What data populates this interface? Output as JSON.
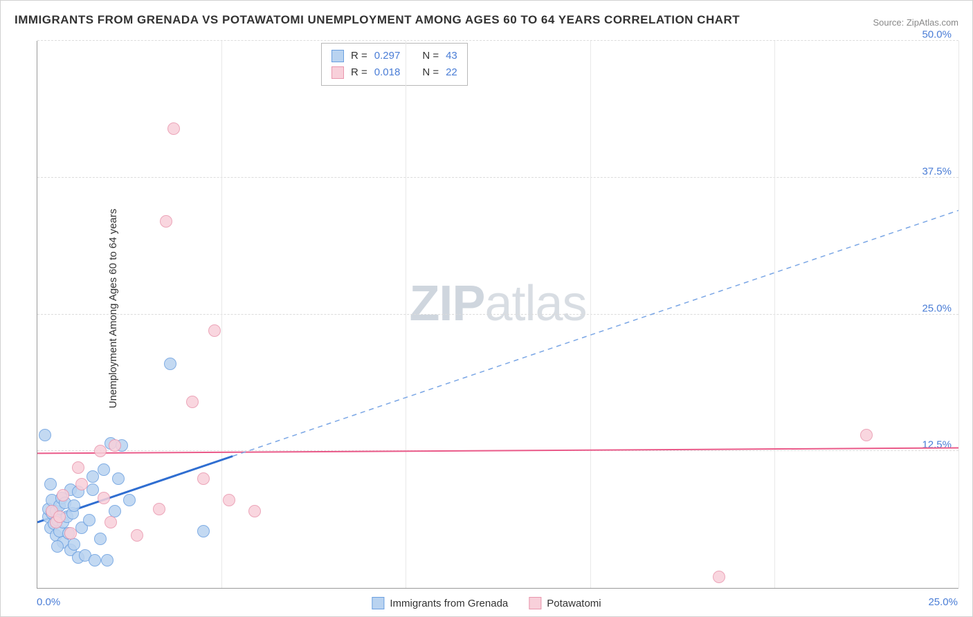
{
  "title": "IMMIGRANTS FROM GRENADA VS POTAWATOMI UNEMPLOYMENT AMONG AGES 60 TO 64 YEARS CORRELATION CHART",
  "source": "Source: ZipAtlas.com",
  "ylabel": "Unemployment Among Ages 60 to 64 years",
  "watermark_a": "ZIP",
  "watermark_b": "atlas",
  "chart": {
    "type": "scatter",
    "xlim": [
      0,
      25
    ],
    "ylim": [
      0,
      50
    ],
    "x_ticks": [
      0,
      5,
      10,
      15,
      20,
      25
    ],
    "y_ticks": [
      12.5,
      25.0,
      37.5,
      50.0
    ],
    "x_tick_labels": {
      "start": "0.0%",
      "end": "25.0%"
    },
    "y_tick_labels": [
      "12.5%",
      "25.0%",
      "37.5%",
      "50.0%"
    ],
    "background_color": "#ffffff",
    "grid_color": "#dcdcdc"
  },
  "series": {
    "grenada": {
      "label": "Immigrants from Grenada",
      "fill": "#b9d3f0",
      "stroke": "#6a9fe0",
      "marker_radius": 9,
      "R": "0.297",
      "N": "43",
      "trend": {
        "x1": 0,
        "y1": 6.0,
        "x2": 25,
        "y2": 34.5,
        "solid_until_x": 5.3,
        "color_solid": "#2f6ed1",
        "color_dash": "#7aa6e5",
        "width": 2
      },
      "points": [
        {
          "x": 0.2,
          "y": 14.0
        },
        {
          "x": 0.3,
          "y": 6.5
        },
        {
          "x": 0.3,
          "y": 7.2
        },
        {
          "x": 0.35,
          "y": 5.5
        },
        {
          "x": 0.4,
          "y": 6.8
        },
        {
          "x": 0.4,
          "y": 8.0
        },
        {
          "x": 0.45,
          "y": 5.9
        },
        {
          "x": 0.5,
          "y": 7.0
        },
        {
          "x": 0.5,
          "y": 4.8
        },
        {
          "x": 0.55,
          "y": 6.2
        },
        {
          "x": 0.6,
          "y": 7.5
        },
        {
          "x": 0.6,
          "y": 5.2
        },
        {
          "x": 0.65,
          "y": 8.2
        },
        {
          "x": 0.7,
          "y": 6.0
        },
        {
          "x": 0.7,
          "y": 4.2
        },
        {
          "x": 0.75,
          "y": 7.8
        },
        {
          "x": 0.8,
          "y": 6.5
        },
        {
          "x": 0.85,
          "y": 5.0
        },
        {
          "x": 0.9,
          "y": 9.0
        },
        {
          "x": 0.9,
          "y": 3.5
        },
        {
          "x": 0.95,
          "y": 6.8
        },
        {
          "x": 1.0,
          "y": 4.0
        },
        {
          "x": 1.0,
          "y": 7.5
        },
        {
          "x": 1.1,
          "y": 2.8
        },
        {
          "x": 1.1,
          "y": 8.8
        },
        {
          "x": 1.2,
          "y": 5.5
        },
        {
          "x": 1.3,
          "y": 3.0
        },
        {
          "x": 1.4,
          "y": 6.2
        },
        {
          "x": 1.5,
          "y": 10.2
        },
        {
          "x": 1.5,
          "y": 9.0
        },
        {
          "x": 1.55,
          "y": 2.5
        },
        {
          "x": 1.7,
          "y": 4.5
        },
        {
          "x": 1.8,
          "y": 10.8
        },
        {
          "x": 1.9,
          "y": 2.5
        },
        {
          "x": 2.0,
          "y": 13.2
        },
        {
          "x": 2.1,
          "y": 7.0
        },
        {
          "x": 2.2,
          "y": 10.0
        },
        {
          "x": 2.3,
          "y": 13.0
        },
        {
          "x": 2.5,
          "y": 8.0
        },
        {
          "x": 3.6,
          "y": 20.5
        },
        {
          "x": 4.5,
          "y": 5.2
        },
        {
          "x": 0.35,
          "y": 9.5
        },
        {
          "x": 0.55,
          "y": 3.8
        }
      ]
    },
    "potawatomi": {
      "label": "Potawatomi",
      "fill": "#f8d0da",
      "stroke": "#e996ad",
      "marker_radius": 9,
      "R": "0.018",
      "N": "22",
      "trend": {
        "x1": 0,
        "y1": 12.3,
        "x2": 25,
        "y2": 12.8,
        "color": "#ea5a89",
        "width": 2
      },
      "points": [
        {
          "x": 0.4,
          "y": 7.0
        },
        {
          "x": 0.5,
          "y": 6.0
        },
        {
          "x": 0.7,
          "y": 8.5
        },
        {
          "x": 0.9,
          "y": 5.0
        },
        {
          "x": 1.1,
          "y": 11.0
        },
        {
          "x": 1.2,
          "y": 9.5
        },
        {
          "x": 1.7,
          "y": 12.5
        },
        {
          "x": 1.8,
          "y": 8.2
        },
        {
          "x": 2.0,
          "y": 6.0
        },
        {
          "x": 2.1,
          "y": 13.0
        },
        {
          "x": 2.7,
          "y": 4.8
        },
        {
          "x": 3.3,
          "y": 7.2
        },
        {
          "x": 3.5,
          "y": 33.5
        },
        {
          "x": 3.7,
          "y": 42.0
        },
        {
          "x": 4.2,
          "y": 17.0
        },
        {
          "x": 4.5,
          "y": 10.0
        },
        {
          "x": 4.8,
          "y": 23.5
        },
        {
          "x": 5.2,
          "y": 8.0
        },
        {
          "x": 5.9,
          "y": 7.0
        },
        {
          "x": 18.5,
          "y": 1.0
        },
        {
          "x": 22.5,
          "y": 14.0
        },
        {
          "x": 0.6,
          "y": 6.5
        }
      ]
    }
  },
  "legend_top": {
    "rows": [
      {
        "swatch_fill": "#b9d3f0",
        "swatch_stroke": "#6a9fe0",
        "R": "0.297",
        "N": "43"
      },
      {
        "swatch_fill": "#f8d0da",
        "swatch_stroke": "#e996ad",
        "R": "0.018",
        "N": "22"
      }
    ]
  }
}
